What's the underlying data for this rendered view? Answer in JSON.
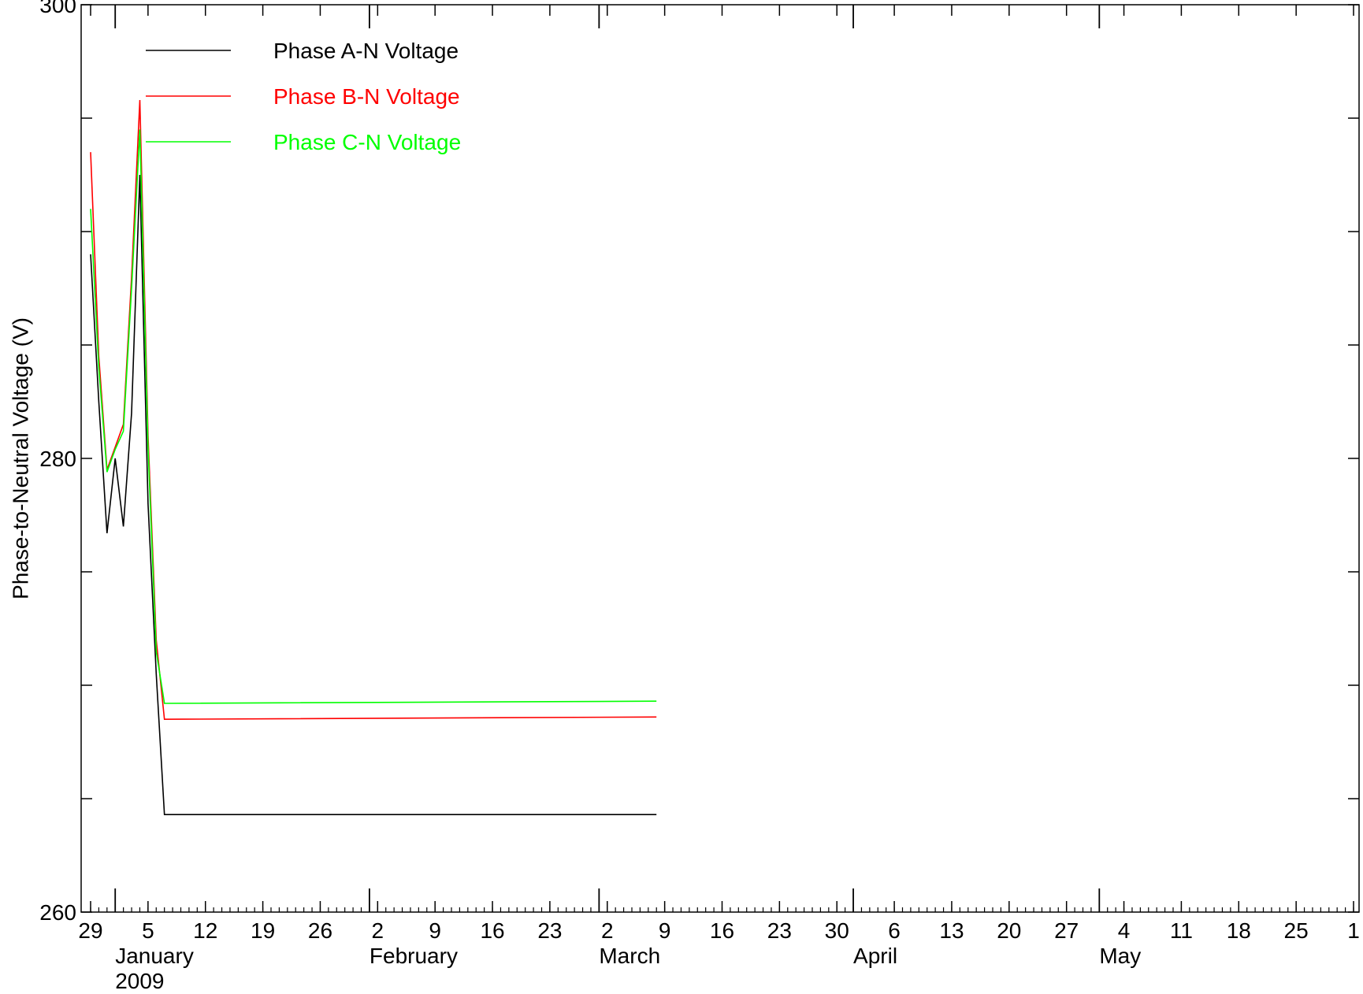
{
  "chart_data": {
    "type": "line",
    "title": "",
    "xlabel": "",
    "ylabel": "Phase-to-Neutral Voltage (V)",
    "ylim": [
      260,
      300
    ],
    "y_ticks": [
      260,
      280,
      300
    ],
    "xlim": [
      "2008-12-29",
      "2009-06-01"
    ],
    "x_tick_labels": [
      {
        "date": "2008-12-29",
        "label": "29"
      },
      {
        "date": "2009-01-05",
        "label": "5"
      },
      {
        "date": "2009-01-12",
        "label": "12"
      },
      {
        "date": "2009-01-19",
        "label": "19"
      },
      {
        "date": "2009-01-26",
        "label": "26"
      },
      {
        "date": "2009-02-02",
        "label": "2"
      },
      {
        "date": "2009-02-09",
        "label": "9"
      },
      {
        "date": "2009-02-16",
        "label": "16"
      },
      {
        "date": "2009-02-23",
        "label": "23"
      },
      {
        "date": "2009-03-02",
        "label": "2"
      },
      {
        "date": "2009-03-09",
        "label": "9"
      },
      {
        "date": "2009-03-16",
        "label": "16"
      },
      {
        "date": "2009-03-23",
        "label": "23"
      },
      {
        "date": "2009-03-30",
        "label": "30"
      },
      {
        "date": "2009-04-06",
        "label": "6"
      },
      {
        "date": "2009-04-13",
        "label": "13"
      },
      {
        "date": "2009-04-20",
        "label": "20"
      },
      {
        "date": "2009-04-27",
        "label": "27"
      },
      {
        "date": "2009-05-04",
        "label": "4"
      },
      {
        "date": "2009-05-11",
        "label": "11"
      },
      {
        "date": "2009-05-18",
        "label": "18"
      },
      {
        "date": "2009-05-25",
        "label": "25"
      },
      {
        "date": "2009-06-01",
        "label": "1"
      }
    ],
    "month_labels": [
      {
        "date": "2009-01-01",
        "label": "January"
      },
      {
        "date": "2009-02-01",
        "label": "February"
      },
      {
        "date": "2009-03-01",
        "label": "March"
      },
      {
        "date": "2009-04-01",
        "label": "April"
      },
      {
        "date": "2009-05-01",
        "label": "May"
      }
    ],
    "year_label": "2009",
    "legend_position": "top-left",
    "grid": false,
    "series": [
      {
        "name": "Phase A-N Voltage",
        "color": "#000000",
        "x": [
          "2008-12-29",
          "2008-12-30",
          "2008-12-31",
          "2009-01-01",
          "2009-01-02",
          "2009-01-03",
          "2009-01-04",
          "2009-01-05",
          "2009-01-06",
          "2009-01-07",
          "2009-03-08"
        ],
        "y": [
          289.0,
          282.5,
          276.7,
          280.0,
          277.0,
          282.0,
          292.5,
          278.0,
          270.5,
          264.3,
          264.3
        ]
      },
      {
        "name": "Phase B-N Voltage",
        "color": "#ff0000",
        "x": [
          "2008-12-29",
          "2008-12-30",
          "2008-12-31",
          "2009-01-01",
          "2009-01-02",
          "2009-01-03",
          "2009-01-04",
          "2009-01-05",
          "2009-01-06",
          "2009-01-07",
          "2009-03-08"
        ],
        "y": [
          293.5,
          284.5,
          279.5,
          280.5,
          281.5,
          288.0,
          295.8,
          281.0,
          272.0,
          268.5,
          268.6
        ]
      },
      {
        "name": "Phase C-N Voltage",
        "color": "#00ff00",
        "x": [
          "2008-12-29",
          "2008-12-30",
          "2008-12-31",
          "2009-01-01",
          "2009-01-02",
          "2009-01-03",
          "2009-01-04",
          "2009-01-05",
          "2009-01-06",
          "2009-01-07",
          "2009-03-08"
        ],
        "y": [
          291.0,
          284.0,
          279.4,
          280.4,
          281.2,
          287.5,
          294.5,
          280.5,
          271.5,
          269.2,
          269.3
        ]
      }
    ]
  }
}
